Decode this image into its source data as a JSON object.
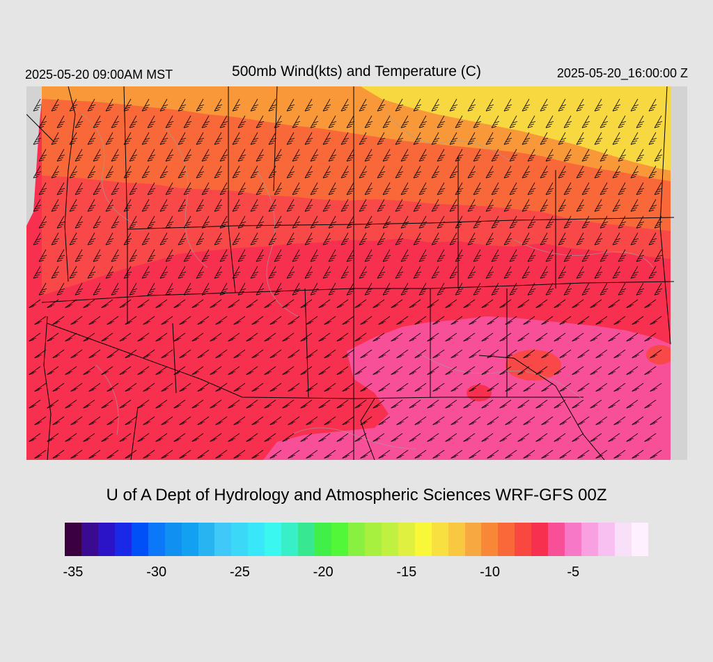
{
  "header": {
    "local_time": "2025-05-20 09:00AM MST",
    "title": "500mb Wind(kts) and Temperature (C)",
    "valid_time": "2025-05-20_16:00:00 Z"
  },
  "credit": "U of A Dept of Hydrology and Atmospheric Sciences WRF-GFS 00Z",
  "colorbar": {
    "unit": "C",
    "ticks": [
      "-35",
      "-30",
      "-25",
      "-20",
      "-15",
      "-10",
      "-5"
    ],
    "colors": [
      "#3a0040",
      "#3a0a90",
      "#2b14c8",
      "#1a28e8",
      "#0050f8",
      "#0a78f8",
      "#1090f0",
      "#12a0f0",
      "#28b4f0",
      "#40c8f8",
      "#3cd8f8",
      "#38e8f8",
      "#3af8f0",
      "#38f0c8",
      "#38e890",
      "#40f048",
      "#50f838",
      "#88f040",
      "#a8f040",
      "#c0f040",
      "#e0f040",
      "#f8f838",
      "#f8e040",
      "#f8c840",
      "#f8a840",
      "#f88838",
      "#f86838",
      "#f84840",
      "#f83050",
      "#f85098",
      "#f878c8",
      "#f8a0e0",
      "#f8c0f0",
      "#f8e0f8",
      "#fff0ff"
    ]
  },
  "map_colors": {
    "band_yellow": "#f8d840",
    "band_orange": "#f89838",
    "band_orange_red": "#f86838",
    "band_red": "#f84848",
    "band_crimson": "#f83050",
    "band_pink": "#f85098",
    "land_gray": "#d3d3d3",
    "line_black": "#000000",
    "contour_gray": "#a0a0a0"
  }
}
